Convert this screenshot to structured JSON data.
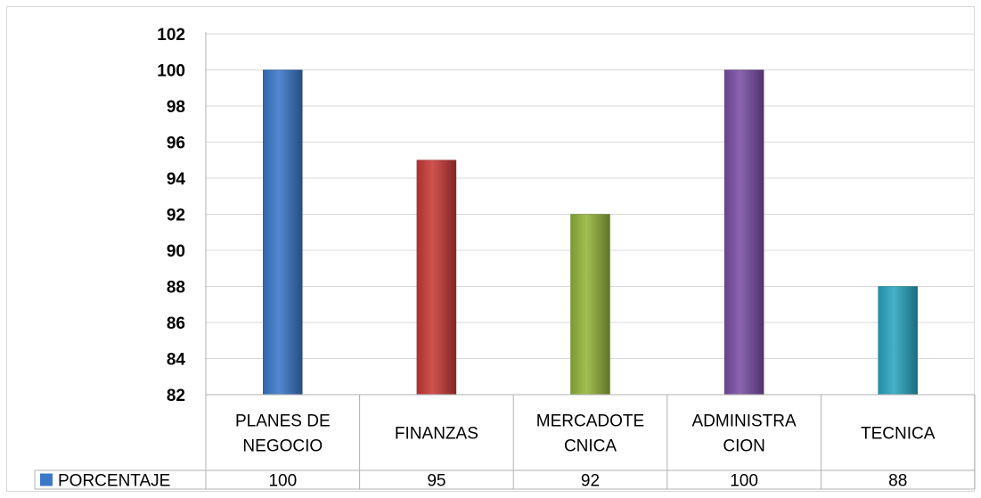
{
  "chart_data": {
    "type": "bar",
    "categories": [
      [
        "PLANES DE",
        "NEGOCIO"
      ],
      [
        "FINANZAS"
      ],
      [
        "MERCADOTE",
        "CNICA"
      ],
      [
        "ADMINISTRA",
        "CION"
      ],
      [
        "TECNICA"
      ]
    ],
    "series": [
      {
        "name": "PORCENTAJE",
        "values": [
          100,
          95,
          92,
          100,
          88
        ]
      }
    ],
    "ylim": [
      82,
      102
    ],
    "yticks": [
      82,
      84,
      86,
      88,
      90,
      92,
      94,
      96,
      98,
      100,
      102
    ],
    "bar_colors": [
      "#3b78c9",
      "#c93a37",
      "#93b53a",
      "#7a4fa6",
      "#2aa6c0"
    ],
    "grid": true,
    "data_table": true,
    "legend_position": "data-table-row",
    "title": "",
    "xlabel": "",
    "ylabel": ""
  }
}
